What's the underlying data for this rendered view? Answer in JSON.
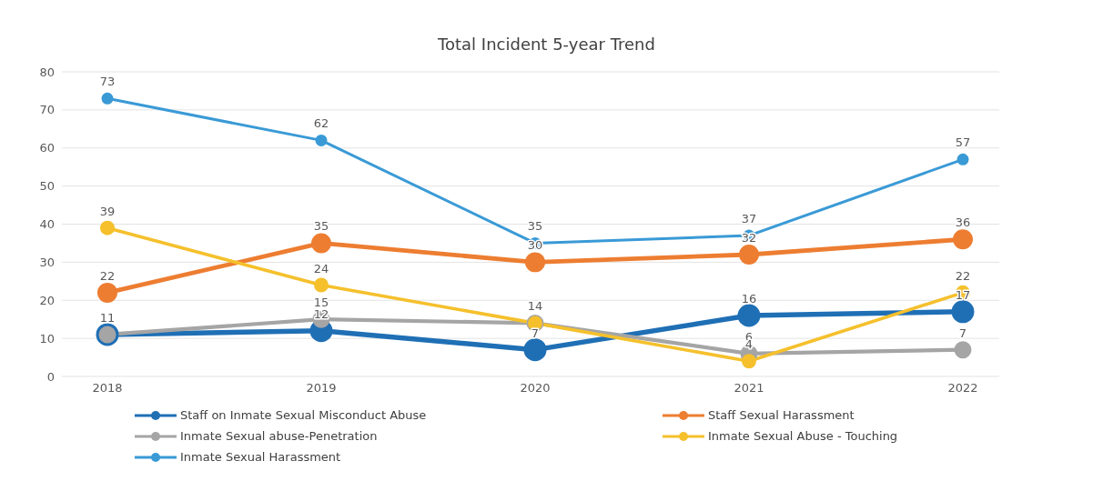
{
  "chart_data": {
    "type": "line",
    "title": "Total Incident 5-year Trend",
    "categories": [
      "2018",
      "2019",
      "2020",
      "2021",
      "2022"
    ],
    "series": [
      {
        "name": "Staff on Inmate Sexual Misconduct Abuse",
        "color": "#1f6fb5",
        "values": [
          11,
          12,
          7,
          16,
          17
        ],
        "value_labels": [
          "11",
          "12",
          "7",
          "16",
          "17"
        ]
      },
      {
        "name": "Staff Sexual Harassment",
        "color": "#ed7d31",
        "values": [
          22,
          35,
          30,
          32,
          36
        ],
        "value_labels": [
          "22",
          "35",
          "30",
          "32",
          "36"
        ]
      },
      {
        "name": "Inmate Sexual abuse-Penetration",
        "color": "#a5a5a5",
        "values": [
          11,
          15,
          14,
          6,
          7
        ],
        "value_labels": [
          null,
          "15",
          null,
          "6",
          "7"
        ]
      },
      {
        "name": "Inmate Sexual Abuse - Touching",
        "color": "#f5c02c",
        "values": [
          39,
          24,
          14,
          4,
          22
        ],
        "value_labels": [
          "39",
          "24",
          "14",
          "4",
          "22"
        ]
      },
      {
        "name": "Inmate Sexual Harassment",
        "color": "#3a9ad6",
        "values": [
          73,
          62,
          35,
          37,
          57
        ],
        "value_labels": [
          "73",
          "62",
          "35",
          "37",
          "57"
        ]
      }
    ],
    "ylim": [
      0,
      80
    ],
    "yticks": [
      0,
      10,
      20,
      30,
      40,
      50,
      60,
      70,
      80
    ],
    "grid": "y",
    "legend": "bottom",
    "marker": "circle",
    "line_style": "solid"
  }
}
